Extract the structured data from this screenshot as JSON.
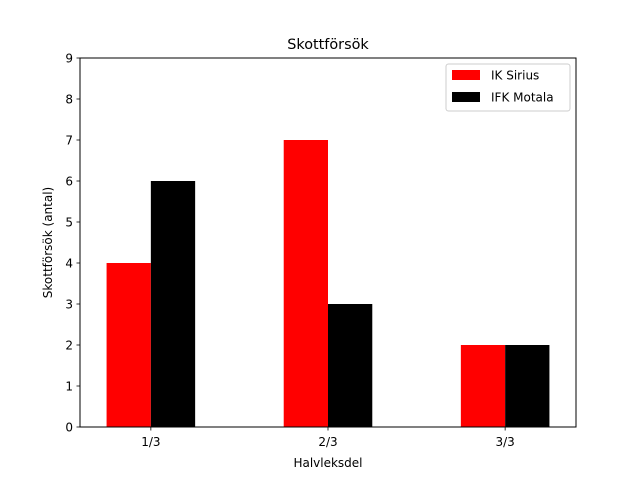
{
  "chart_data": {
    "type": "bar",
    "title": "Skottförsök",
    "xlabel": "Halvleksdel",
    "ylabel": "Skottförsök (antal)",
    "categories": [
      "1/3",
      "2/3",
      "3/3"
    ],
    "series": [
      {
        "name": "IK Sirius",
        "values": [
          4,
          7,
          2
        ],
        "color": "#ff0000"
      },
      {
        "name": "IFK Motala",
        "values": [
          6,
          3,
          2
        ],
        "color": "#000000"
      }
    ],
    "ylim": [
      0,
      9
    ],
    "yticks": [
      0,
      1,
      2,
      3,
      4,
      5,
      6,
      7,
      8,
      9
    ],
    "grid": false,
    "legend_position": "top-right"
  }
}
